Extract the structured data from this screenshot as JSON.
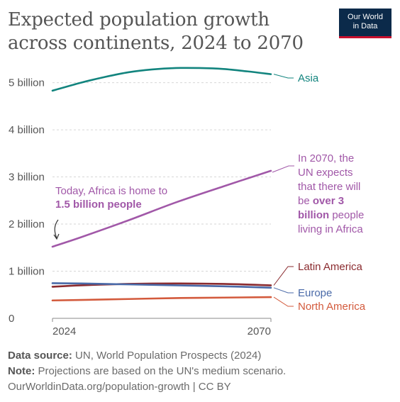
{
  "header": {
    "title": "Expected population growth across continents, 2024 to 2070",
    "logo_line1": "Our World",
    "logo_line2": "in Data"
  },
  "chart_data": {
    "type": "line",
    "title": "Expected population growth across continents, 2024 to 2070",
    "x_range": [
      2024,
      2070
    ],
    "x_ticks": [
      "2024",
      "2070"
    ],
    "ylim": [
      0,
      5.4
    ],
    "y_ticks": [
      {
        "value": 0,
        "label": "0"
      },
      {
        "value": 1,
        "label": "1 billion"
      },
      {
        "value": 2,
        "label": "2 billion"
      },
      {
        "value": 3,
        "label": "3 billion"
      },
      {
        "value": 4,
        "label": "4 billion"
      },
      {
        "value": 5,
        "label": "5 billion"
      }
    ],
    "grid": true,
    "series": [
      {
        "name": "Asia",
        "color": "#12847e",
        "x": [
          2024,
          2030,
          2035,
          2040,
          2045,
          2050,
          2055,
          2060,
          2065,
          2070
        ],
        "values": [
          4.83,
          5.0,
          5.12,
          5.22,
          5.28,
          5.31,
          5.31,
          5.29,
          5.24,
          5.18
        ]
      },
      {
        "name": "Africa",
        "color": "#a158a8",
        "x": [
          2024,
          2030,
          2040,
          2050,
          2060,
          2070
        ],
        "values": [
          1.52,
          1.72,
          2.08,
          2.46,
          2.8,
          3.13
        ]
      },
      {
        "name": "Latin America",
        "color": "#8a2a2e",
        "x": [
          2024,
          2030,
          2040,
          2050,
          2060,
          2070
        ],
        "values": [
          0.67,
          0.7,
          0.73,
          0.74,
          0.73,
          0.7
        ]
      },
      {
        "name": "Europe",
        "color": "#4a6aa8",
        "x": [
          2024,
          2030,
          2040,
          2050,
          2060,
          2070
        ],
        "values": [
          0.745,
          0.74,
          0.72,
          0.7,
          0.68,
          0.65
        ]
      },
      {
        "name": "North America",
        "color": "#d35a3c",
        "x": [
          2024,
          2030,
          2040,
          2050,
          2060,
          2070
        ],
        "values": [
          0.38,
          0.39,
          0.41,
          0.43,
          0.44,
          0.45
        ]
      }
    ],
    "annotations": {
      "africa_today": [
        "Today, Africa is home to",
        "1.5 billion people"
      ],
      "africa_2070": [
        "In 2070, the",
        "UN expects",
        "that there will",
        "be ",
        "over 3",
        "billion",
        " people",
        "living in Africa"
      ]
    }
  },
  "footer": {
    "source_label": "Data source:",
    "source_text": " UN, World Population Prospects (2024)",
    "note_label": "Note:",
    "note_text": " Projections are based on the UN's medium scenario.",
    "credit": "OurWorldinData.org/population-growth | CC BY"
  }
}
